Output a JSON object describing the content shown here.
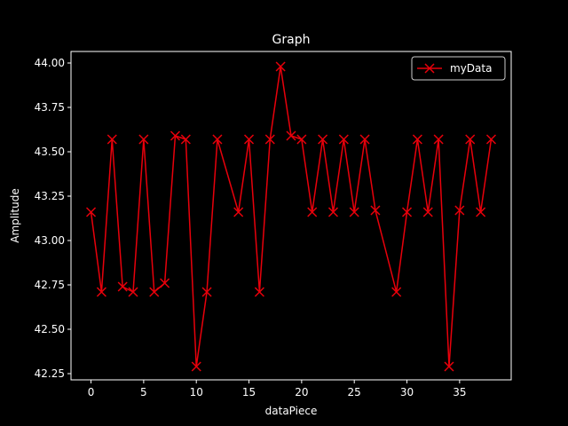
{
  "chart_data": {
    "type": "line",
    "title": "Graph",
    "xlabel": "dataPiece",
    "ylabel": "Amplitude",
    "xlim": [
      -1.9,
      39.9
    ],
    "ylim": [
      42.215,
      44.065
    ],
    "xticks": [
      0,
      5,
      10,
      15,
      20,
      25,
      30,
      35
    ],
    "xtick_labels": [
      "0",
      "5",
      "10",
      "15",
      "20",
      "25",
      "30",
      "35"
    ],
    "yticks": [
      42.25,
      42.5,
      42.75,
      43.0,
      43.25,
      43.5,
      43.75,
      44.0
    ],
    "ytick_labels": [
      "42.25",
      "42.50",
      "42.75",
      "43.00",
      "43.25",
      "43.50",
      "43.75",
      "44.00"
    ],
    "grid": false,
    "legend_position": "top-right",
    "series": [
      {
        "name": "myData",
        "color": "#e8000b",
        "marker": "x",
        "x": [
          0,
          1,
          2,
          3,
          4,
          5,
          6,
          7,
          8,
          9,
          10,
          11,
          12,
          14,
          15,
          16,
          17,
          18,
          19,
          20,
          21,
          22,
          23,
          24,
          25,
          26,
          27,
          29,
          30,
          31,
          32,
          33,
          34,
          35,
          36,
          37,
          38
        ],
        "y": [
          43.16,
          42.71,
          43.57,
          42.74,
          42.71,
          43.57,
          42.71,
          42.76,
          43.59,
          43.57,
          42.29,
          42.71,
          43.57,
          43.16,
          43.57,
          42.71,
          43.57,
          43.98,
          43.59,
          43.57,
          43.16,
          43.57,
          43.16,
          43.57,
          43.16,
          43.57,
          43.17,
          42.71,
          43.16,
          43.57,
          43.16,
          43.57,
          42.29,
          43.17,
          43.57,
          43.16,
          43.57
        ]
      }
    ]
  }
}
